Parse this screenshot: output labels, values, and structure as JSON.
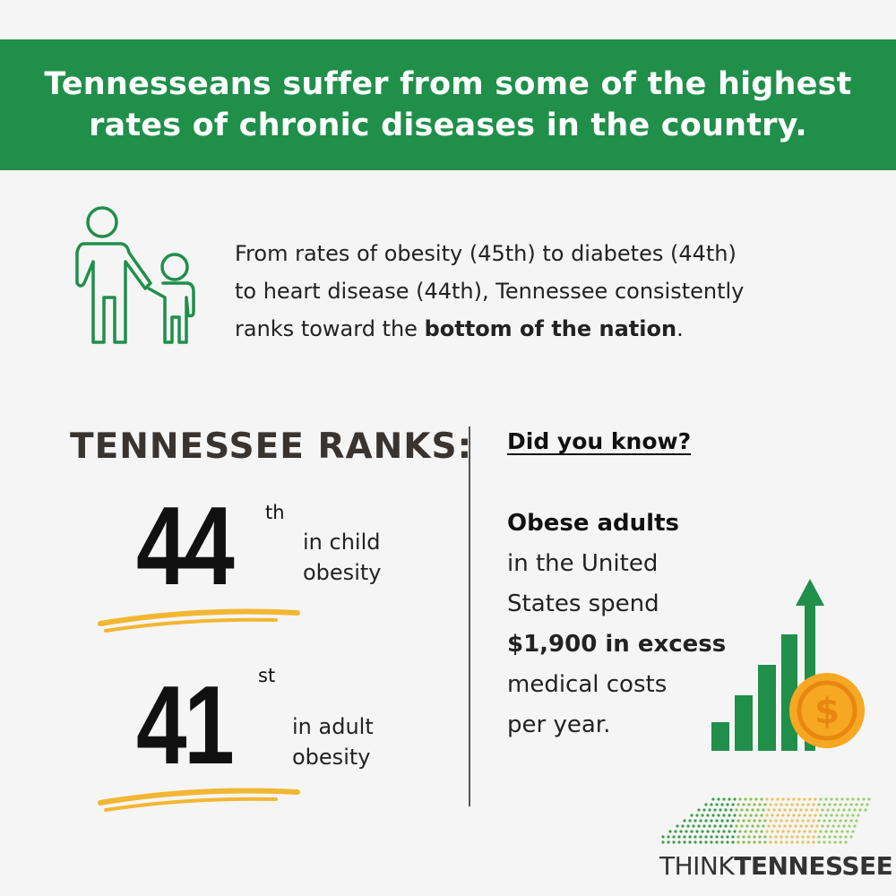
{
  "header": {
    "line1": "Tennesseans suffer from some of the highest",
    "line2": "rates of chronic diseases in the country."
  },
  "intro": {
    "line1": "From rates of obesity (45th) to diabetes (44th)",
    "line2": "to heart disease (44th), Tennessee consistently",
    "line3_prefix": "ranks toward the ",
    "line3_bold": "bottom of the nation",
    "line3_suffix": "."
  },
  "ranks": {
    "heading": "TENNESSEE RANKS:",
    "items": [
      {
        "number": "44",
        "suffix": "th",
        "desc_line1": "in child",
        "desc_line2": "obesity"
      },
      {
        "number": "41",
        "suffix": "st",
        "desc_line1": "in adult",
        "desc_line2": "obesity"
      }
    ]
  },
  "did_you_know": {
    "heading": "Did you know?",
    "line1": "Obese adults",
    "line2": "in the United",
    "line3": "States spend",
    "line4": "$1,900 in excess",
    "line5": "medical costs",
    "line6": "per year."
  },
  "logo": {
    "word1": "THINK",
    "word2": "TENNESSEE"
  },
  "icons": {
    "family": "parent-child-icon",
    "growth": "bar-chart-dollar-icon",
    "logo": "tennessee-dot-map-icon"
  },
  "colors": {
    "brand_green": "#1f8f4a",
    "accent_green": "#1f8f4a",
    "underline_yellow": "#f2b632",
    "coin_orange": "#f7a823"
  }
}
